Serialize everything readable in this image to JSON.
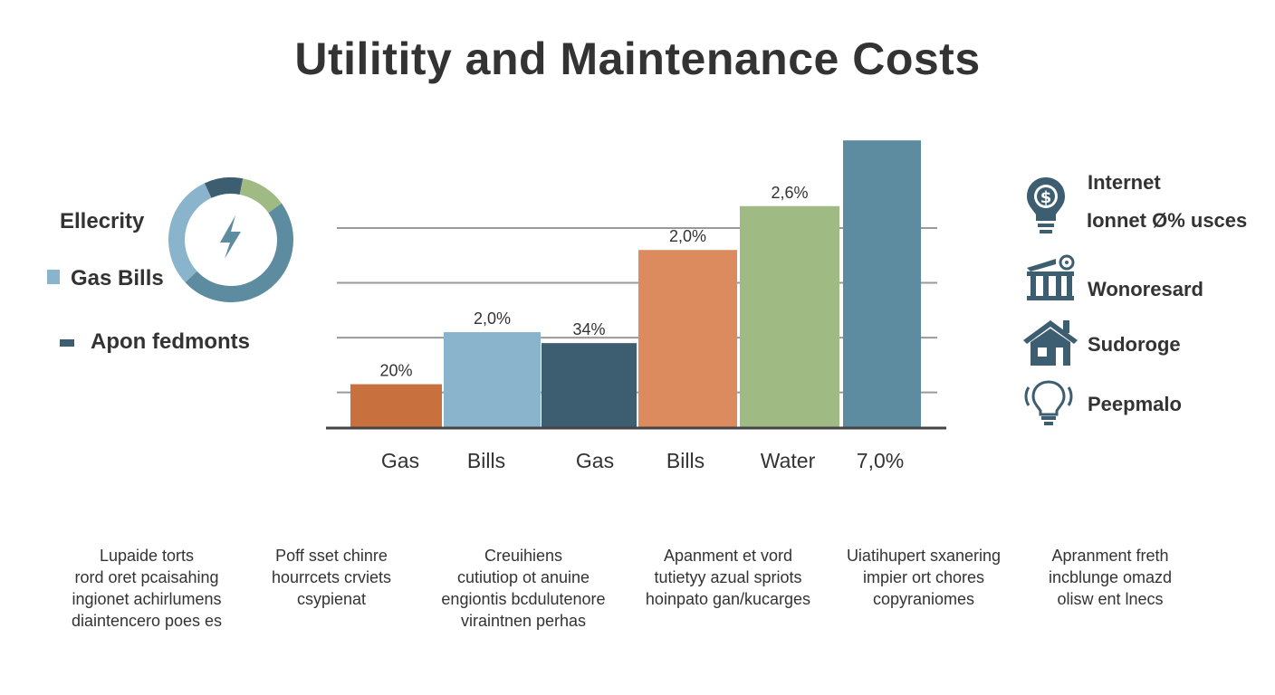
{
  "title": "Utilitity and Maintenance Costs",
  "colors": {
    "orange": "#c8703e",
    "light_blue": "#8ab4cb",
    "dark_teal": "#3d5e70",
    "salmon": "#db8b5e",
    "green": "#9fba83",
    "steel_blue": "#5d8ca1",
    "grid": "#9a9a9a",
    "axis": "#444444"
  },
  "left_legend": {
    "donut_label": "Ellecrity",
    "donut_icon": "lightning-bolt-icon",
    "gas_label": "Gas Bills",
    "other_label": "Apon fedmonts",
    "donut_segments": [
      {
        "name": "dark",
        "value": 10,
        "color": "#3d5e70"
      },
      {
        "name": "green",
        "value": 12,
        "color": "#9fba83"
      },
      {
        "name": "steel",
        "value": 48,
        "color": "#5d8ca1"
      },
      {
        "name": "light",
        "value": 30,
        "color": "#8ab4cb"
      }
    ]
  },
  "chart_data": {
    "type": "bar",
    "title": "Utilitity and Maintenance Costs",
    "categories": [
      "Gas",
      "Bills",
      "Gas",
      "Bills",
      "Water",
      "7,0%"
    ],
    "values": [
      8,
      17.5,
      15.5,
      32.5,
      40.5,
      52.5
    ],
    "data_labels": [
      "20%",
      "2,0%",
      "34%",
      "2,0%",
      "2,6%",
      ""
    ],
    "colors": [
      "#c8703e",
      "#8ab4cb",
      "#3d5e70",
      "#db8b5e",
      "#9fba83",
      "#5d8ca1"
    ],
    "ylim": [
      0,
      55
    ],
    "grid": true,
    "gridlines": [
      6.5,
      16.5,
      26.5,
      36.5
    ],
    "xlabel": "",
    "ylabel": ""
  },
  "right_legend": [
    {
      "icon": "dollar-bulb-icon",
      "lines": [
        "Internet",
        "Ionnet Ø% usces"
      ]
    },
    {
      "icon": "building-gear-icon",
      "lines": [
        "Wonoresard"
      ]
    },
    {
      "icon": "house-icon",
      "lines": [
        "Sudoroge"
      ]
    },
    {
      "icon": "lightbulb-icon",
      "lines": [
        "Peepmalo"
      ]
    }
  ],
  "descriptions": [
    [
      "Lupaide torts",
      "rord oret pcaisahing",
      "ingionet achirlumens",
      "diaintencero poes es"
    ],
    [
      "Poff sset chinre",
      "hourrcets crviets",
      "csypienat"
    ],
    [
      "Creuihiens",
      "cutiutiop ot anuine",
      "engiontis bcdulutenore",
      "viraintnen perhas"
    ],
    [
      "Apanment et vord",
      "tutietyy azual spriots",
      "hoinpato gan/kucarges"
    ],
    [
      "Uiatihupert sxanering",
      "impier ort chores",
      "copyraniomes"
    ],
    [
      "Apranment freth",
      "incblunge omazd",
      "olisw ent lnecs"
    ]
  ]
}
